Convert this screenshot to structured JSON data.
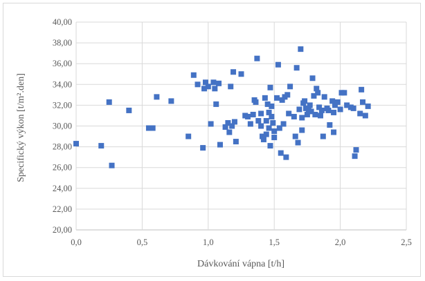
{
  "chart_data": {
    "type": "scatter",
    "title": "",
    "xlabel": "Dávkování vápna [t/h]",
    "ylabel": "Specifický výkon [t/m².den]",
    "xlim": [
      0,
      2.5
    ],
    "ylim": [
      20,
      40
    ],
    "x_ticks": [
      0,
      0.5,
      1,
      1.5,
      2,
      2.5
    ],
    "x_tick_labels": [
      "0,0",
      "0,5",
      "1,0",
      "1,5",
      "2,0",
      "2,5"
    ],
    "y_ticks": [
      20,
      22,
      24,
      26,
      28,
      30,
      32,
      34,
      36,
      38,
      40
    ],
    "y_tick_labels": [
      "20,00",
      "22,00",
      "24,00",
      "26,00",
      "28,00",
      "30,00",
      "32,00",
      "34,00",
      "36,00",
      "38,00",
      "40,00"
    ],
    "grid": true,
    "marker_color": "#4472c4",
    "marker": "square",
    "points": [
      [
        0.0,
        28.3
      ],
      [
        0.19,
        28.1
      ],
      [
        0.25,
        32.3
      ],
      [
        0.27,
        26.2
      ],
      [
        0.4,
        31.5
      ],
      [
        0.55,
        29.8
      ],
      [
        0.58,
        29.8
      ],
      [
        0.61,
        32.8
      ],
      [
        0.72,
        32.4
      ],
      [
        0.85,
        29.0
      ],
      [
        0.89,
        34.9
      ],
      [
        0.92,
        34.0
      ],
      [
        0.96,
        27.9
      ],
      [
        0.97,
        33.6
      ],
      [
        0.98,
        34.2
      ],
      [
        1.0,
        33.8
      ],
      [
        1.02,
        30.2
      ],
      [
        1.04,
        34.2
      ],
      [
        1.05,
        33.6
      ],
      [
        1.06,
        32.1
      ],
      [
        1.08,
        34.1
      ],
      [
        1.09,
        28.2
      ],
      [
        1.13,
        29.9
      ],
      [
        1.15,
        30.3
      ],
      [
        1.16,
        29.4
      ],
      [
        1.17,
        33.8
      ],
      [
        1.18,
        30.0
      ],
      [
        1.19,
        35.2
      ],
      [
        1.2,
        30.4
      ],
      [
        1.21,
        28.5
      ],
      [
        1.25,
        35.0
      ],
      [
        1.28,
        31.0
      ],
      [
        1.3,
        30.9
      ],
      [
        1.32,
        30.2
      ],
      [
        1.34,
        31.1
      ],
      [
        1.35,
        32.5
      ],
      [
        1.36,
        32.3
      ],
      [
        1.37,
        36.5
      ],
      [
        1.38,
        30.5
      ],
      [
        1.4,
        31.2
      ],
      [
        1.4,
        30.0
      ],
      [
        1.41,
        29.0
      ],
      [
        1.42,
        28.7
      ],
      [
        1.43,
        32.7
      ],
      [
        1.44,
        30.5
      ],
      [
        1.44,
        29.2
      ],
      [
        1.45,
        32.1
      ],
      [
        1.46,
        31.3
      ],
      [
        1.46,
        29.8
      ],
      [
        1.47,
        33.7
      ],
      [
        1.47,
        28.1
      ],
      [
        1.48,
        31.9
      ],
      [
        1.48,
        30.9
      ],
      [
        1.49,
        30.3
      ],
      [
        1.5,
        28.9
      ],
      [
        1.5,
        29.5
      ],
      [
        1.52,
        32.7
      ],
      [
        1.53,
        35.9
      ],
      [
        1.54,
        29.8
      ],
      [
        1.55,
        27.4
      ],
      [
        1.56,
        32.5
      ],
      [
        1.57,
        30.2
      ],
      [
        1.58,
        32.8
      ],
      [
        1.59,
        27.0
      ],
      [
        1.6,
        33.0
      ],
      [
        1.61,
        31.2
      ],
      [
        1.62,
        33.8
      ],
      [
        1.65,
        30.9
      ],
      [
        1.66,
        29.0
      ],
      [
        1.67,
        35.6
      ],
      [
        1.68,
        28.4
      ],
      [
        1.69,
        31.6
      ],
      [
        1.7,
        37.4
      ],
      [
        1.71,
        30.8
      ],
      [
        1.71,
        29.6
      ],
      [
        1.72,
        32.2
      ],
      [
        1.73,
        32.4
      ],
      [
        1.74,
        31.7
      ],
      [
        1.75,
        31.1
      ],
      [
        1.76,
        31.5
      ],
      [
        1.77,
        32.0
      ],
      [
        1.78,
        31.4
      ],
      [
        1.79,
        34.6
      ],
      [
        1.8,
        32.9
      ],
      [
        1.81,
        31.1
      ],
      [
        1.82,
        33.6
      ],
      [
        1.83,
        33.2
      ],
      [
        1.84,
        31.8
      ],
      [
        1.85,
        31.0
      ],
      [
        1.86,
        31.5
      ],
      [
        1.87,
        29.0
      ],
      [
        1.88,
        32.8
      ],
      [
        1.9,
        31.7
      ],
      [
        1.91,
        31.5
      ],
      [
        1.92,
        30.1
      ],
      [
        1.94,
        32.4
      ],
      [
        1.95,
        29.4
      ],
      [
        1.95,
        31.3
      ],
      [
        1.96,
        32.0
      ],
      [
        1.98,
        32.3
      ],
      [
        2.0,
        31.6
      ],
      [
        2.01,
        33.2
      ],
      [
        2.03,
        33.2
      ],
      [
        2.05,
        32.0
      ],
      [
        2.08,
        31.8
      ],
      [
        2.1,
        31.7
      ],
      [
        2.11,
        27.1
      ],
      [
        2.12,
        27.7
      ],
      [
        2.15,
        31.2
      ],
      [
        2.16,
        33.5
      ],
      [
        2.17,
        32.3
      ],
      [
        2.19,
        31.0
      ],
      [
        2.21,
        31.9
      ]
    ]
  }
}
